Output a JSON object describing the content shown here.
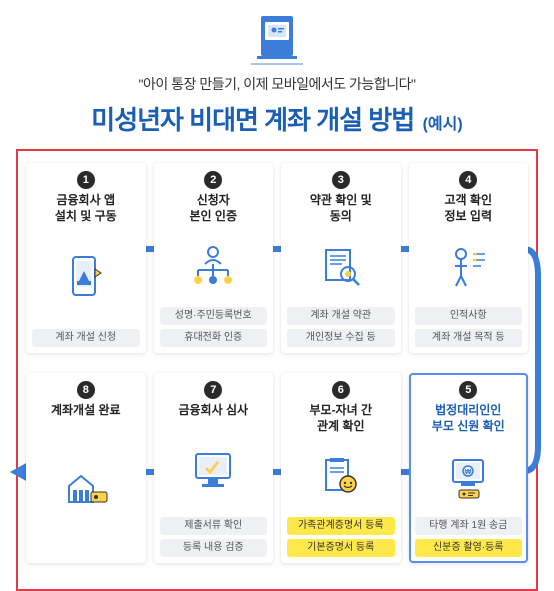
{
  "header": {
    "subtitle": "\"아이 통장 만들기, 이제 모바일에서도 가능합니다\"",
    "main_title": "미성년자 비대면 계좌 개설 방법",
    "title_suffix": "(예시)"
  },
  "colors": {
    "accent_blue": "#3b7dd8",
    "title_blue": "#1a5fb4",
    "border_red": "#e63946",
    "tag_bg": "#eef0f3",
    "tag_yellow": "#ffe94a",
    "num_bg": "#2a2a2a"
  },
  "steps_row1": [
    {
      "num": "1",
      "title": "금융회사 앱\n설치 및 구동",
      "tags": [
        {
          "text": "계좌 개설 신청",
          "yellow": false
        }
      ],
      "highlight": false
    },
    {
      "num": "2",
      "title": "신청자\n본인 인증",
      "tags": [
        {
          "text": "성명·주민등록번호",
          "yellow": false
        },
        {
          "text": "휴대전화 인증",
          "yellow": false
        }
      ],
      "highlight": false
    },
    {
      "num": "3",
      "title": "약관 확인 및\n동의",
      "tags": [
        {
          "text": "계좌 개설 약관",
          "yellow": false
        },
        {
          "text": "개인정보 수집 등",
          "yellow": false
        }
      ],
      "highlight": false
    },
    {
      "num": "4",
      "title": "고객 확인\n정보 입력",
      "tags": [
        {
          "text": "인적사항",
          "yellow": false
        },
        {
          "text": "계좌 개설 목적 등",
          "yellow": false
        }
      ],
      "highlight": false
    }
  ],
  "steps_row2": [
    {
      "num": "8",
      "title": "계좌개설 완료",
      "tags": [],
      "highlight": false
    },
    {
      "num": "7",
      "title": "금융회사 심사",
      "tags": [
        {
          "text": "제출서류 확인",
          "yellow": false
        },
        {
          "text": "등록 내용 검증",
          "yellow": false
        }
      ],
      "highlight": false
    },
    {
      "num": "6",
      "title": "부모-자녀 간\n관계 확인",
      "tags": [
        {
          "text": "가족관계증명서 등록",
          "yellow": true
        },
        {
          "text": "기본증명서 등록",
          "yellow": true
        }
      ],
      "highlight": false
    },
    {
      "num": "5",
      "title": "법정대리인인\n부모 신원 확인",
      "tags": [
        {
          "text": "타행 계좌 1원 송금",
          "yellow": false
        },
        {
          "text": "신분증 촬영·등록",
          "yellow": true
        }
      ],
      "highlight": true
    }
  ]
}
